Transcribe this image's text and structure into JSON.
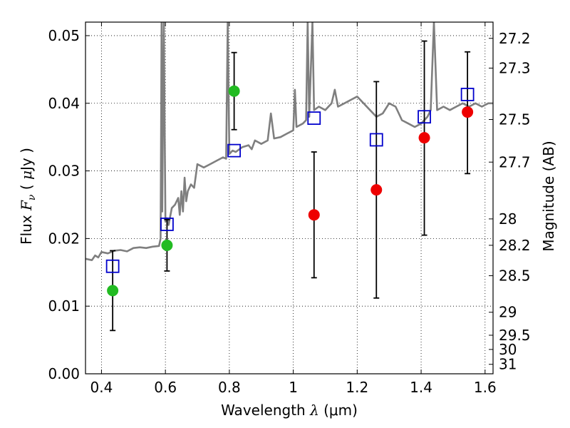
{
  "chart_data": {
    "type": "line",
    "title": "",
    "xlabel": "Wavelength  λ (μm)",
    "ylabel": "Flux  F_ν  ( μJy )",
    "ylabel_parts": {
      "prefix": "Flux  ",
      "symbol": "F",
      "sub": "ν",
      "unit_open": "  ( ",
      "mu": "μ",
      "unit_rest": "Jy )"
    },
    "xlabel_parts": {
      "prefix": "Wavelength  ",
      "symbol": "λ",
      "unit": " (μm)"
    },
    "y2label": "Magnitude (AB)",
    "xlim": [
      0.35,
      1.625
    ],
    "ylim": [
      0.0,
      0.052
    ],
    "grid": true,
    "x_ticks": [
      0.4,
      0.6,
      0.8,
      1.0,
      1.2,
      1.4,
      1.6
    ],
    "x_tick_labels": [
      "0.4",
      "0.6",
      "0.8",
      "1",
      "1.2",
      "1.4",
      "1.6"
    ],
    "y_ticks": [
      0.0,
      0.01,
      0.02,
      0.03,
      0.04,
      0.05
    ],
    "y_tick_labels": [
      "0.00",
      "0.01",
      "0.02",
      "0.03",
      "0.04",
      "0.05"
    ],
    "y2_ticks": [
      {
        "label": "27.2",
        "flux": 0.0496
      },
      {
        "label": "27.3",
        "flux": 0.0452
      },
      {
        "label": "27.5",
        "flux": 0.0376
      },
      {
        "label": "27.7",
        "flux": 0.0313
      },
      {
        "label": "28",
        "flux": 0.0229
      },
      {
        "label": "28.2",
        "flux": 0.019
      },
      {
        "label": "28.5",
        "flux": 0.0145
      },
      {
        "label": "29",
        "flux": 0.0091
      },
      {
        "label": "29.5",
        "flux": 0.0057
      },
      {
        "label": "30",
        "flux": 0.0036
      },
      {
        "label": "31",
        "flux": 0.0014
      }
    ],
    "series": [
      {
        "kind": "line",
        "color": "#7f7f7f",
        "points": [
          [
            0.35,
            0.017
          ],
          [
            0.37,
            0.0168
          ],
          [
            0.38,
            0.0175
          ],
          [
            0.39,
            0.0172
          ],
          [
            0.4,
            0.018
          ],
          [
            0.42,
            0.0178
          ],
          [
            0.44,
            0.0182
          ],
          [
            0.46,
            0.0183
          ],
          [
            0.48,
            0.0181
          ],
          [
            0.5,
            0.0186
          ],
          [
            0.52,
            0.0187
          ],
          [
            0.54,
            0.0186
          ],
          [
            0.56,
            0.0188
          ],
          [
            0.58,
            0.0189
          ],
          [
            0.585,
            0.02
          ],
          [
            0.588,
            0.052
          ],
          [
            0.59,
            0.024
          ],
          [
            0.595,
            0.052
          ],
          [
            0.6,
            0.0225
          ],
          [
            0.605,
            0.023
          ],
          [
            0.61,
            0.022
          ],
          [
            0.62,
            0.0245
          ],
          [
            0.63,
            0.025
          ],
          [
            0.64,
            0.026
          ],
          [
            0.645,
            0.0235
          ],
          [
            0.65,
            0.027
          ],
          [
            0.655,
            0.024
          ],
          [
            0.66,
            0.029
          ],
          [
            0.665,
            0.0255
          ],
          [
            0.67,
            0.027
          ],
          [
            0.68,
            0.028
          ],
          [
            0.69,
            0.0275
          ],
          [
            0.7,
            0.031
          ],
          [
            0.72,
            0.0305
          ],
          [
            0.74,
            0.031
          ],
          [
            0.76,
            0.0315
          ],
          [
            0.78,
            0.032
          ],
          [
            0.79,
            0.0318
          ],
          [
            0.795,
            0.052
          ],
          [
            0.8,
            0.0325
          ],
          [
            0.81,
            0.033
          ],
          [
            0.82,
            0.0328
          ],
          [
            0.84,
            0.0335
          ],
          [
            0.86,
            0.0338
          ],
          [
            0.87,
            0.0332
          ],
          [
            0.88,
            0.0345
          ],
          [
            0.9,
            0.034
          ],
          [
            0.92,
            0.0345
          ],
          [
            0.93,
            0.0385
          ],
          [
            0.94,
            0.0348
          ],
          [
            0.96,
            0.035
          ],
          [
            0.98,
            0.0355
          ],
          [
            1.0,
            0.036
          ],
          [
            1.005,
            0.042
          ],
          [
            1.01,
            0.0365
          ],
          [
            1.03,
            0.037
          ],
          [
            1.04,
            0.0375
          ],
          [
            1.045,
            0.052
          ],
          [
            1.05,
            0.038
          ],
          [
            1.06,
            0.052
          ],
          [
            1.065,
            0.039
          ],
          [
            1.08,
            0.0395
          ],
          [
            1.1,
            0.039
          ],
          [
            1.12,
            0.04
          ],
          [
            1.13,
            0.042
          ],
          [
            1.14,
            0.0395
          ],
          [
            1.16,
            0.04
          ],
          [
            1.18,
            0.0405
          ],
          [
            1.2,
            0.041
          ],
          [
            1.22,
            0.04
          ],
          [
            1.24,
            0.039
          ],
          [
            1.26,
            0.038
          ],
          [
            1.28,
            0.0385
          ],
          [
            1.3,
            0.04
          ],
          [
            1.32,
            0.0395
          ],
          [
            1.33,
            0.0385
          ],
          [
            1.34,
            0.0375
          ],
          [
            1.36,
            0.037
          ],
          [
            1.38,
            0.0365
          ],
          [
            1.4,
            0.037
          ],
          [
            1.42,
            0.038
          ],
          [
            1.43,
            0.039
          ],
          [
            1.44,
            0.052
          ],
          [
            1.45,
            0.039
          ],
          [
            1.47,
            0.0395
          ],
          [
            1.49,
            0.039
          ],
          [
            1.51,
            0.0395
          ],
          [
            1.53,
            0.04
          ],
          [
            1.55,
            0.0395
          ],
          [
            1.57,
            0.04
          ],
          [
            1.59,
            0.0395
          ],
          [
            1.61,
            0.04
          ],
          [
            1.625,
            0.04
          ]
        ]
      },
      {
        "kind": "squares",
        "color": "#0000cc",
        "points": [
          [
            0.435,
            0.0159
          ],
          [
            0.605,
            0.0221
          ],
          [
            0.815,
            0.033
          ],
          [
            1.065,
            0.0378
          ],
          [
            1.26,
            0.0346
          ],
          [
            1.41,
            0.038
          ],
          [
            1.545,
            0.0413
          ]
        ]
      },
      {
        "kind": "dots",
        "color": "#22bb22",
        "points": [
          [
            0.435,
            0.0123
          ],
          [
            0.605,
            0.019
          ],
          [
            0.815,
            0.0418
          ]
        ]
      },
      {
        "kind": "dots",
        "color": "#ee0000",
        "points": [
          [
            1.065,
            0.0235
          ],
          [
            1.26,
            0.0272
          ],
          [
            1.41,
            0.0349
          ],
          [
            1.545,
            0.0387
          ]
        ]
      },
      {
        "kind": "errorbars",
        "color": "#000000",
        "bars": [
          {
            "x": 0.435,
            "low": 0.0064,
            "high": 0.0182
          },
          {
            "x": 0.605,
            "low": 0.0152,
            "high": 0.0228
          },
          {
            "x": 0.815,
            "low": 0.0361,
            "high": 0.0475
          },
          {
            "x": 1.065,
            "low": 0.0142,
            "high": 0.0328
          },
          {
            "x": 1.26,
            "low": 0.0112,
            "high": 0.0432
          },
          {
            "x": 1.41,
            "low": 0.0205,
            "high": 0.0492
          },
          {
            "x": 1.545,
            "low": 0.0296,
            "high": 0.0476
          }
        ]
      }
    ]
  }
}
